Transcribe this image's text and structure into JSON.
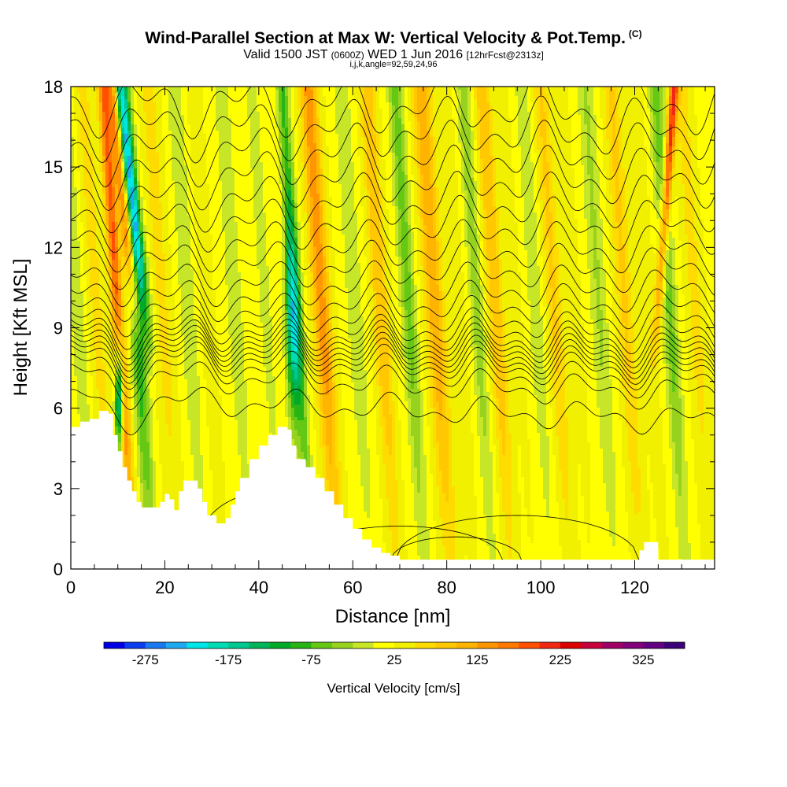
{
  "chart_data": {
    "type": "heatmap",
    "title": "Wind-Parallel Section at Max W: Vertical Velocity & Pot.Temp.",
    "title_mark": "(C)",
    "subtitle_main": "Valid 1500 JST",
    "subtitle_utc": "(0600Z)",
    "subtitle_date": "WED 1 Jun 2016",
    "subtitle_fcst": "[12hrFcst@2313z]",
    "subtitle2": "i,j,k,angle=92,59,24,96",
    "xlabel": "Distance [nm]",
    "ylabel": "Height [Kft MSL]",
    "xlim": [
      0,
      137
    ],
    "ylim": [
      0,
      18
    ],
    "xticks": [
      0,
      20,
      40,
      60,
      80,
      100,
      120
    ],
    "yticks": [
      0,
      3,
      6,
      9,
      12,
      15,
      18
    ],
    "colorbar": {
      "label": "Vertical Velocity [cm/s]",
      "tick_values": [
        -275,
        -175,
        -75,
        25,
        125,
        225,
        325
      ],
      "tick_labels": [
        "-275",
        "-175",
        "-75",
        "25",
        "125",
        "225",
        "325"
      ],
      "min": -325,
      "max": 375,
      "step": 25,
      "colors": [
        "#0000e6",
        "#0a3cf0",
        "#1c78f0",
        "#1eaaf0",
        "#00e6e6",
        "#00dcb4",
        "#00c890",
        "#00b45a",
        "#00aa28",
        "#28b414",
        "#64c814",
        "#96d21e",
        "#c8e628",
        "#ffff00",
        "#f0f000",
        "#ffdc00",
        "#ffc800",
        "#ffb400",
        "#ff9600",
        "#ff7800",
        "#ff5000",
        "#f02814",
        "#dc0000",
        "#c8003c",
        "#a00064",
        "#820078",
        "#640082",
        "#3c0078"
      ]
    },
    "terrain_height_kft": [
      [
        0,
        5.3
      ],
      [
        2,
        5.5
      ],
      [
        4,
        5.6
      ],
      [
        6,
        5.9
      ],
      [
        8,
        5.8
      ],
      [
        9,
        5.0
      ],
      [
        10,
        4.4
      ],
      [
        11,
        3.8
      ],
      [
        12,
        3.3
      ],
      [
        13,
        2.9
      ],
      [
        14,
        2.5
      ],
      [
        15,
        2.3
      ],
      [
        17,
        2.3
      ],
      [
        19,
        2.5
      ],
      [
        20,
        2.8
      ],
      [
        21,
        2.6
      ],
      [
        22,
        2.2
      ],
      [
        23,
        2.9
      ],
      [
        24,
        3.3
      ],
      [
        26,
        3.3
      ],
      [
        27,
        3.0
      ],
      [
        28,
        2.5
      ],
      [
        29,
        2.0
      ],
      [
        31,
        1.7
      ],
      [
        33,
        1.9
      ],
      [
        34,
        2.4
      ],
      [
        35,
        2.9
      ],
      [
        36,
        3.4
      ],
      [
        38,
        4.1
      ],
      [
        40,
        4.6
      ],
      [
        42,
        5.0
      ],
      [
        44,
        5.3
      ],
      [
        46,
        5.2
      ],
      [
        47,
        4.6
      ],
      [
        48,
        4.1
      ],
      [
        50,
        3.8
      ],
      [
        52,
        3.4
      ],
      [
        54,
        2.9
      ],
      [
        56,
        2.4
      ],
      [
        58,
        1.9
      ],
      [
        60,
        1.5
      ],
      [
        62,
        1.1
      ],
      [
        64,
        0.8
      ],
      [
        66,
        0.6
      ],
      [
        68,
        0.5
      ],
      [
        70,
        0.35
      ],
      [
        80,
        0.35
      ],
      [
        100,
        0.35
      ],
      [
        120,
        0.35
      ],
      [
        121,
        0.7
      ],
      [
        122,
        1.0
      ],
      [
        124,
        1.0
      ],
      [
        125,
        0.35
      ],
      [
        128,
        0.35
      ],
      [
        137,
        0.4
      ]
    ],
    "theta_contour_heights_at_left_kft": [
      6.3,
      7.2,
      7.6,
      7.9,
      8.1,
      8.3,
      8.5,
      8.7,
      8.9,
      9.2,
      9.6,
      10.1,
      10.7,
      11.4,
      12.1,
      12.9,
      13.7,
      14.6,
      15.5,
      16.4,
      17.3
    ]
  }
}
